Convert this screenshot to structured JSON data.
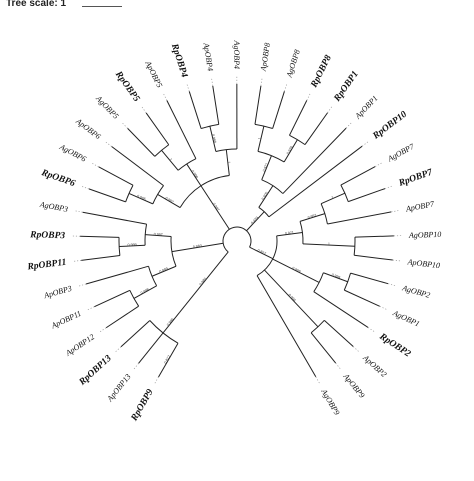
{
  "scale": {
    "title": "Tree scale: 1"
  },
  "leaves": [
    {
      "id": "RpOBP9",
      "label": "RpOBP9",
      "bold": true
    },
    {
      "id": "ApOBP13",
      "label": "ApOBP13",
      "bold": false
    },
    {
      "id": "RpOBP13",
      "label": "RpOBP13",
      "bold": true
    },
    {
      "id": "ApOBP12",
      "label": "ApOBP12",
      "bold": false
    },
    {
      "id": "ApOBP11",
      "label": "ApOBP11",
      "bold": false
    },
    {
      "id": "ApOBP3",
      "label": "ApOBP3",
      "bold": false
    },
    {
      "id": "RpOBP11",
      "label": "RpOBP11",
      "bold": true
    },
    {
      "id": "RpOBP3",
      "label": "RpOBP3",
      "bold": true
    },
    {
      "id": "AgOBP3",
      "label": "AgOBP3",
      "bold": false
    },
    {
      "id": "RpOBP6",
      "label": "RpOBP6",
      "bold": true
    },
    {
      "id": "AgOBP6",
      "label": "AgOBP6",
      "bold": false
    },
    {
      "id": "ApOBP6",
      "label": "ApOBP6",
      "bold": false
    },
    {
      "id": "AgOBP5",
      "label": "AgOBP5",
      "bold": false
    },
    {
      "id": "RpOBP5",
      "label": "RpOBP5",
      "bold": true
    },
    {
      "id": "ApOBP5",
      "label": "ApOBP5",
      "bold": false
    },
    {
      "id": "RpOBP4",
      "label": "RpOBP4",
      "bold": true
    },
    {
      "id": "ApOBP4",
      "label": "ApOBP4",
      "bold": false
    },
    {
      "id": "AgOBP4",
      "label": "AgOBP4",
      "bold": false
    },
    {
      "id": "ApOBP8",
      "label": "ApOBP8",
      "bold": false
    },
    {
      "id": "AgOBP8",
      "label": "AgOBP8",
      "bold": false
    },
    {
      "id": "RpOBP8",
      "label": "RpOBP8",
      "bold": true
    },
    {
      "id": "RpOBP1",
      "label": "RpOBP1",
      "bold": true
    },
    {
      "id": "ApOBP1",
      "label": "ApOBP1",
      "bold": false
    },
    {
      "id": "RpOBP10",
      "label": "RpOBP10",
      "bold": true
    },
    {
      "id": "AgOBP7",
      "label": "AgOBP7",
      "bold": false
    },
    {
      "id": "RpOBP7",
      "label": "RpOBP7",
      "bold": true
    },
    {
      "id": "ApOBP7",
      "label": "ApOBP7",
      "bold": false
    },
    {
      "id": "AgOBP10",
      "label": "AgOBP10",
      "bold": false
    },
    {
      "id": "ApOBP10",
      "label": "ApOBP10",
      "bold": false
    },
    {
      "id": "AgOBP2",
      "label": "AgOBP2",
      "bold": false
    },
    {
      "id": "AgOBP1",
      "label": "AgOBP1",
      "bold": false
    },
    {
      "id": "RpOBP2",
      "label": "RpOBP2",
      "bold": true
    },
    {
      "id": "ApOBP2",
      "label": "ApOBP2",
      "bold": false
    },
    {
      "id": "ApOBP9",
      "label": "ApOBP9",
      "bold": false
    },
    {
      "id": "AgOBP9",
      "label": "AgOBP9",
      "bold": false
    }
  ],
  "tree": {
    "children": [
      {
        "support": "0.980",
        "children": [
          {
            "support": "0.996",
            "children": [
              {
                "support": "0.812",
                "leaf": "RpOBP9"
              },
              {
                "leaf": "ApOBP13"
              },
              {
                "leaf": "RpOBP13"
              }
            ]
          }
        ]
      },
      {
        "support": "0.983",
        "children": [
          {
            "support": "0.999",
            "children": [
              {
                "support": "0.998",
                "children": [
                  {
                    "leaf": "ApOBP12"
                  },
                  {
                    "leaf": "ApOBP11"
                  }
                ]
              },
              {
                "leaf": "ApOBP3"
              }
            ]
          },
          {
            "support": "0.997",
            "children": [
              {
                "support": "0.999",
                "children": [
                  {
                    "leaf": "RpOBP11"
                  },
                  {
                    "leaf": "RpOBP3"
                  }
                ]
              },
              {
                "leaf": "AgOBP3"
              }
            ]
          }
        ]
      },
      {
        "support": "0.997",
        "children": [
          {
            "support": "0.992",
            "children": [
              {
                "support": "0.995",
                "children": [
                  {
                    "leaf": "RpOBP6"
                  },
                  {
                    "leaf": "AgOBP6"
                  }
                ]
              },
              {
                "leaf": "ApOBP6"
              }
            ]
          },
          {
            "support": "0.998",
            "children": [
              {
                "support": "1",
                "children": [
                  {
                    "leaf": "AgOBP5"
                  },
                  {
                    "leaf": "RpOBP5"
                  }
                ]
              },
              {
                "leaf": "ApOBP5"
              }
            ]
          },
          {
            "support": "1",
            "children": [
              {
                "support": "0.998",
                "children": [
                  {
                    "leaf": "RpOBP4"
                  },
                  {
                    "leaf": "ApOBP4"
                  }
                ]
              },
              {
                "leaf": "AgOBP4"
              }
            ]
          }
        ]
      },
      {
        "support": "0.429",
        "children": [
          {
            "support": "0.805",
            "children": [
              {
                "support": "0.971",
                "children": [
                  {
                    "support": "1",
                    "children": [
                      {
                        "leaf": "ApOBP8"
                      },
                      {
                        "leaf": "AgOBP8"
                      }
                    ]
                  },
                  {
                    "support": "0.976",
                    "children": [
                      {
                        "leaf": "RpOBP8"
                      },
                      {
                        "leaf": "RpOBP1"
                      }
                    ]
                  }
                ]
              },
              {
                "leaf": "ApOBP1"
              }
            ]
          },
          {
            "leaf": "RpOBP10"
          }
        ]
      },
      {
        "support": "0.827",
        "children": [
          {
            "support": "0.971",
            "children": [
              {
                "support": "0.957",
                "children": [
                  {
                    "support": "1",
                    "children": [
                      {
                        "leaf": "AgOBP7"
                      },
                      {
                        "leaf": "RpOBP7"
                      }
                    ]
                  },
                  {
                    "leaf": "ApOBP7"
                  }
                ]
              },
              {
                "support": "1",
                "children": [
                  {
                    "leaf": "AgOBP10"
                  },
                  {
                    "leaf": "ApOBP10"
                  }
                ]
              }
            ]
          },
          {
            "support": "0.999",
            "children": [
              {
                "support": "0.998",
                "children": [
                  {
                    "leaf": "AgOBP2"
                  },
                  {
                    "leaf": "AgOBP1"
                  }
                ]
              },
              {
                "leaf": "RpOBP2"
              }
            ]
          },
          {
            "support": "0.994",
            "children": [
              {
                "leaf": "ApOBP2"
              },
              {
                "leaf": "ApOBP9"
              }
            ]
          },
          {
            "leaf": "AgOBP9"
          }
        ]
      }
    ]
  }
}
